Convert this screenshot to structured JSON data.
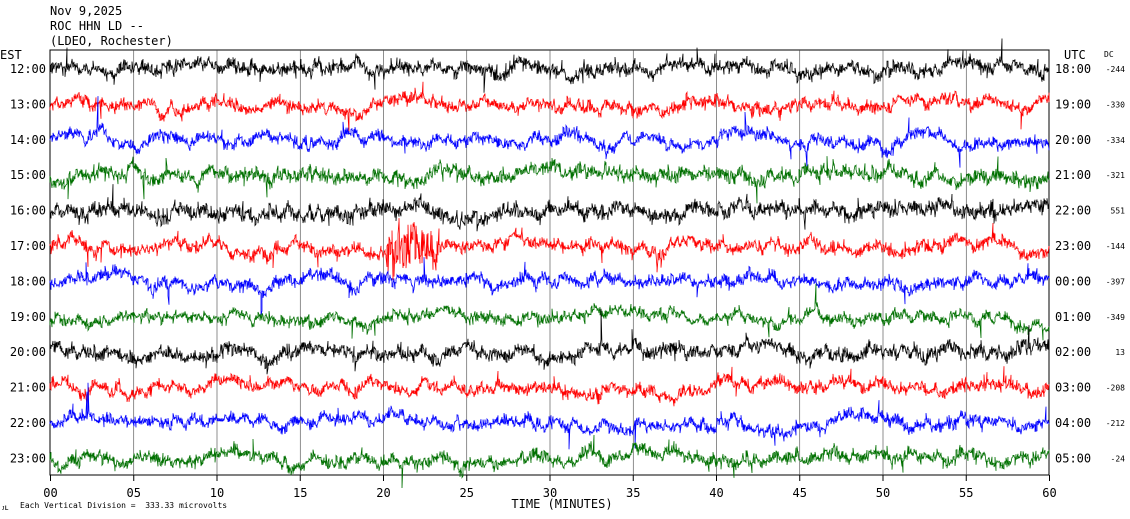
{
  "header": {
    "date": "Nov 9,2025",
    "station": "ROC HHN LD --",
    "network": "(LDEO, Rochester)"
  },
  "axes": {
    "left_label": "EST",
    "right_label": "UTC",
    "dc_label": "DC",
    "xlabel": "TIME (MINUTES)"
  },
  "footer": {
    "mark": "ᴊʟ",
    "scale_note": "Each Vertical Division =  333.33 microvolts"
  },
  "colors": {
    "cycle": [
      "#000000",
      "#ff0000",
      "#0000ff",
      "#007000"
    ],
    "grid": "#000000"
  },
  "chart_data": {
    "type": "line",
    "title": "",
    "xlabel": "TIME (MINUTES)",
    "ylabel": "",
    "xlim": [
      0,
      60
    ],
    "x_ticks": [
      "00",
      "05",
      "10",
      "15",
      "20",
      "25",
      "30",
      "35",
      "40",
      "45",
      "50",
      "55",
      "60"
    ],
    "rows": [
      {
        "est": "12:00",
        "utc": "18:00",
        "dc": "-244",
        "color": "#000000",
        "amp": 1.2
      },
      {
        "est": "13:00",
        "utc": "19:00",
        "dc": "-330",
        "color": "#ff0000",
        "amp": 1.0
      },
      {
        "est": "14:00",
        "utc": "20:00",
        "dc": "-334",
        "color": "#0000ff",
        "amp": 1.0
      },
      {
        "est": "15:00",
        "utc": "21:00",
        "dc": "-321",
        "color": "#007000",
        "amp": 1.2
      },
      {
        "est": "16:00",
        "utc": "22:00",
        "dc": "551",
        "color": "#000000",
        "amp": 1.3
      },
      {
        "est": "17:00",
        "utc": "23:00",
        "dc": "-144",
        "color": "#ff0000",
        "amp": 1.0
      },
      {
        "est": "18:00",
        "utc": "00:00",
        "dc": "-397",
        "color": "#0000ff",
        "amp": 1.0
      },
      {
        "est": "19:00",
        "utc": "01:00",
        "dc": "-349",
        "color": "#007000",
        "amp": 0.9
      },
      {
        "est": "20:00",
        "utc": "02:00",
        "dc": "13",
        "color": "#000000",
        "amp": 1.2
      },
      {
        "est": "21:00",
        "utc": "03:00",
        "dc": "-208",
        "color": "#ff0000",
        "amp": 1.0
      },
      {
        "est": "22:00",
        "utc": "04:00",
        "dc": "-212",
        "color": "#0000ff",
        "amp": 1.0
      },
      {
        "est": "23:00",
        "utc": "05:00",
        "dc": "-24",
        "color": "#007000",
        "amp": 1.1
      }
    ],
    "events": [
      {
        "row": 5,
        "minute_start": 20.2,
        "minute_end": 23.4,
        "boost": 4.0
      }
    ],
    "grid": true
  }
}
